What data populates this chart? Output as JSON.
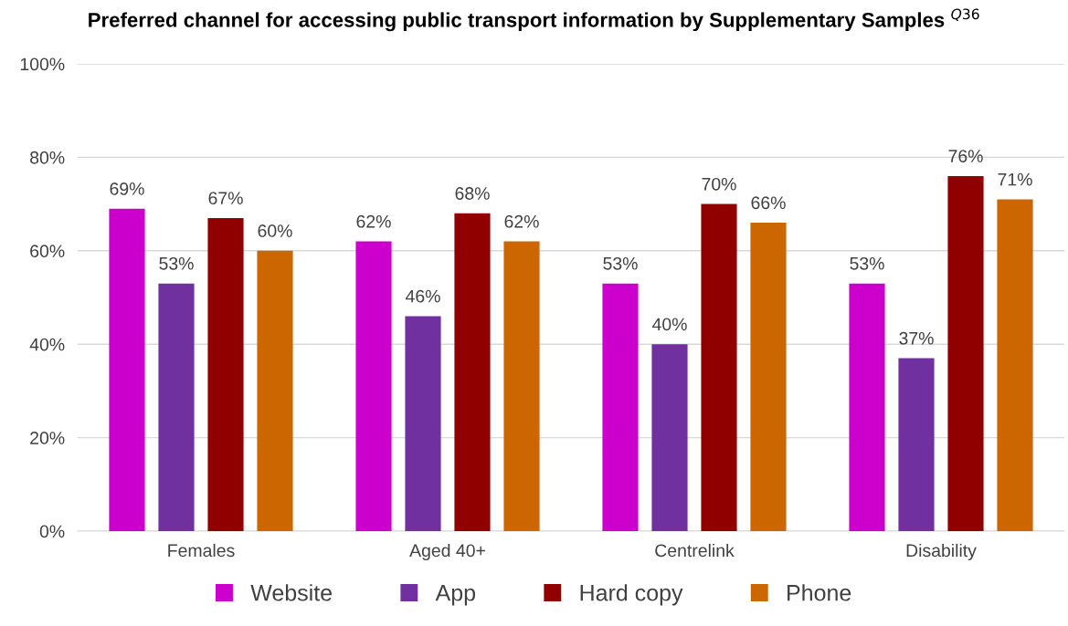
{
  "chart_data": {
    "type": "bar",
    "title": "Preferred channel for accessing public transport information by Supplementary Samples $^{Q36}$",
    "categories": [
      "Females",
      "Aged 40+",
      "Centrelink",
      "Disability"
    ],
    "series": [
      {
        "name": "Website",
        "color": "#cc00cc",
        "values": [
          69,
          62,
          53,
          53
        ],
        "value_labels": [
          "69%",
          "62%",
          "53%",
          "53%"
        ]
      },
      {
        "name": "App",
        "color": "#7030a0",
        "values": [
          53,
          46,
          40,
          37
        ],
        "value_labels": [
          "53%",
          "46%",
          "40%",
          "37%"
        ]
      },
      {
        "name": "Hard copy",
        "color": "#900000",
        "values": [
          67,
          68,
          70,
          76
        ],
        "value_labels": [
          "67%",
          "68%",
          "70%",
          "76%"
        ]
      },
      {
        "name": "Phone",
        "color": "#cc6600",
        "values": [
          60,
          62,
          66,
          71
        ],
        "value_labels": [
          "60%",
          "62%",
          "66%",
          "71%"
        ]
      }
    ],
    "ylim": [
      0,
      100
    ],
    "yticks": [
      {
        "value": 0,
        "label": "0%"
      },
      {
        "value": 20,
        "label": "20%"
      },
      {
        "value": 40,
        "label": "40%"
      },
      {
        "value": 60,
        "label": "60%"
      },
      {
        "value": 80,
        "label": "80%"
      },
      {
        "value": 100,
        "label": "100%"
      }
    ],
    "grid": "y",
    "legend": "bottom"
  }
}
